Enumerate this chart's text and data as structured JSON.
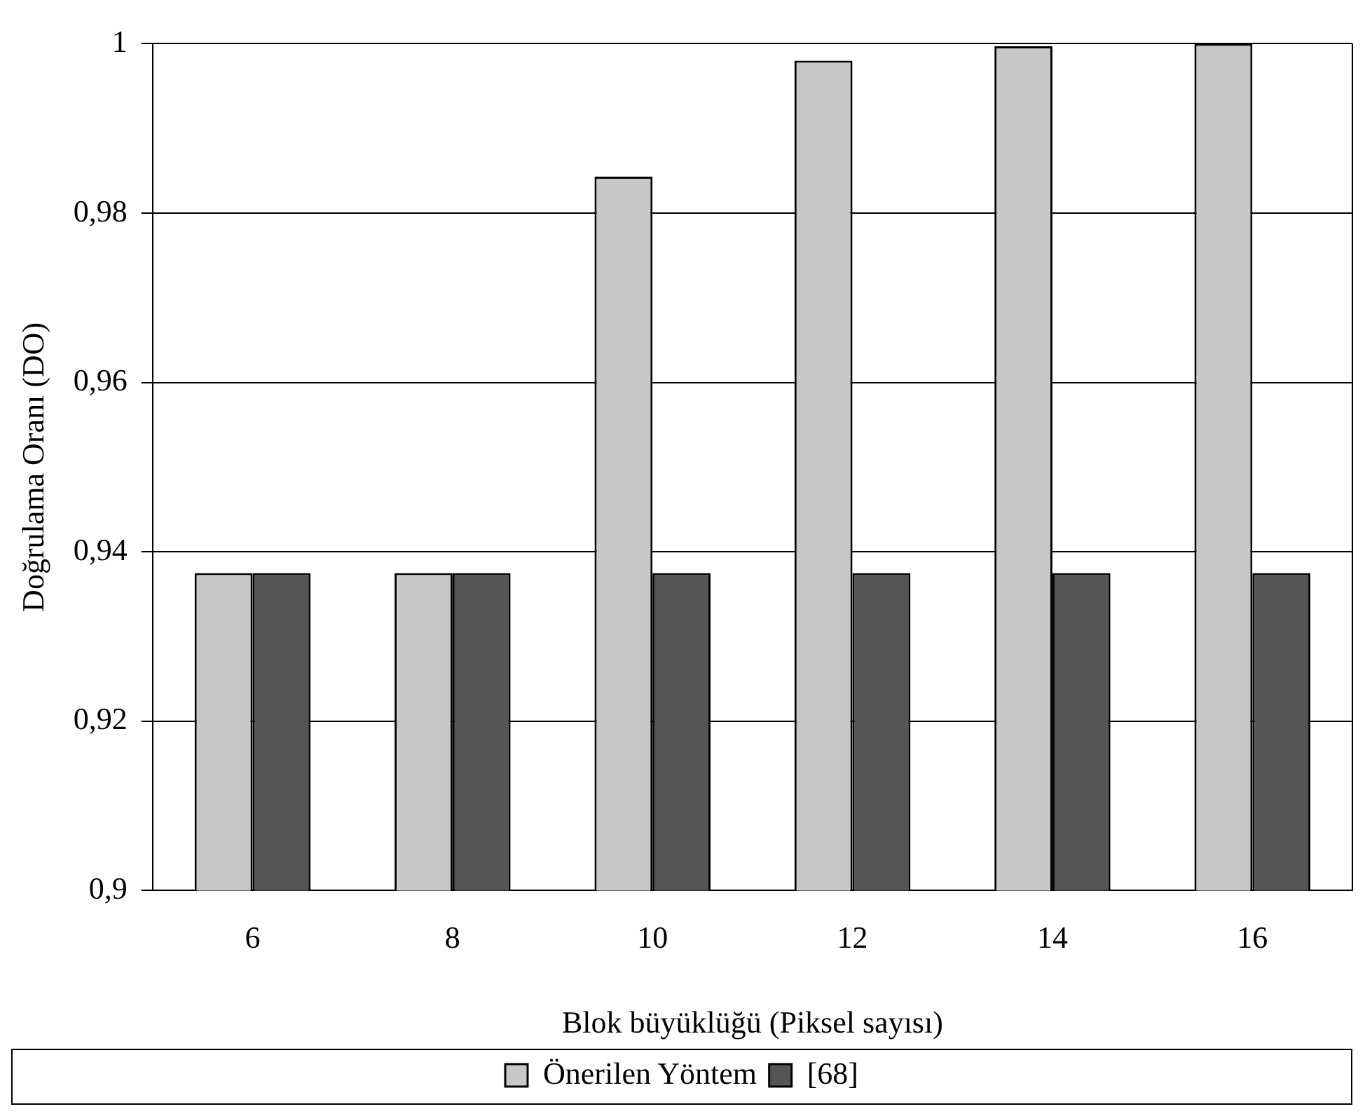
{
  "chart_data": {
    "type": "bar",
    "xlabel": "Blok büyüklüğü (Piksel sayısı)",
    "ylabel": "Doğrulama Oranı (DO)",
    "categories": [
      "6",
      "8",
      "10",
      "12",
      "14",
      "16"
    ],
    "series": [
      {
        "name": "Önerilen Yöntem",
        "color": "#c8c8c8",
        "values": [
          0.9375,
          0.9375,
          0.9843,
          0.998,
          0.9997,
          1.0
        ]
      },
      {
        "name": "[68]",
        "color": "#555555",
        "values": [
          0.9375,
          0.9375,
          0.9375,
          0.9375,
          0.9375,
          0.9375
        ]
      }
    ],
    "ylim": [
      0.9,
      1
    ],
    "yticks": [
      {
        "value": 0.9,
        "label": "0,9"
      },
      {
        "value": 0.92,
        "label": "0,92"
      },
      {
        "value": 0.94,
        "label": "0,94"
      },
      {
        "value": 0.96,
        "label": "0,96"
      },
      {
        "value": 0.98,
        "label": "0,98"
      },
      {
        "value": 1,
        "label": "1"
      }
    ],
    "grid": "y",
    "legend": "bottom"
  }
}
